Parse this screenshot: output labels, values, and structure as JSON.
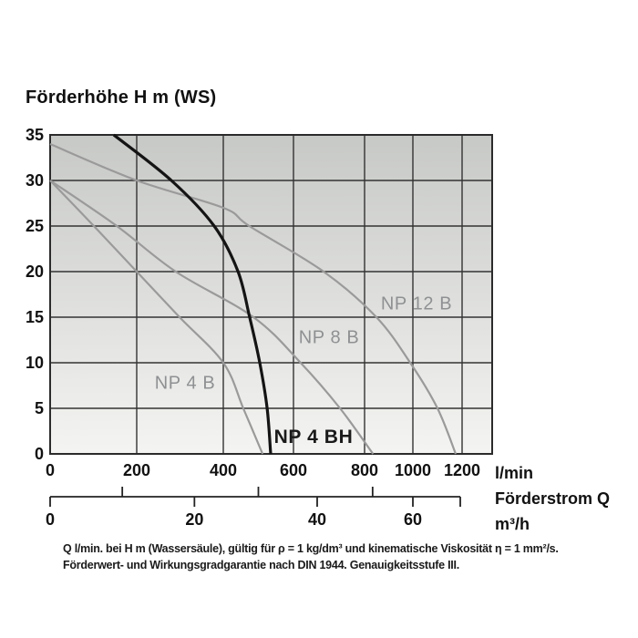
{
  "page": {
    "background": "#ffffff"
  },
  "chart_data": {
    "type": "line",
    "title": "Förderhöhe H m (WS)",
    "y_axis": {
      "label": "Förderhöhe H m (WS)",
      "ticks": [
        35,
        30,
        25,
        20,
        15,
        10,
        5,
        0
      ],
      "range": [
        0,
        35
      ],
      "grid": true
    },
    "x_axis_lmin": {
      "unit": "l/min",
      "ticks": [
        0,
        200,
        400,
        600,
        800,
        1000,
        1200
      ],
      "range": [
        0,
        1270
      ],
      "scale_note": "compressed non-linear spacing toward high flow"
    },
    "x_axis_m3h": {
      "unit": "m³/h",
      "ticks": [
        0,
        20,
        40,
        60
      ],
      "minor_ticks": [
        10,
        30,
        50
      ]
    },
    "x_title": "Förderstrom Q",
    "legend_position": "labels-on-curves",
    "grid_color": "#333333",
    "plot_bg_top": "#c7c9c6",
    "plot_bg_bottom": "#f4f4f2",
    "series": [
      {
        "name": "NP 4 B",
        "color": "#9a9a9a",
        "width": 2.2,
        "points_q_lmin_vs_H_m": [
          [
            0,
            30
          ],
          [
            101,
            25
          ],
          [
            200,
            20
          ],
          [
            299,
            15
          ],
          [
            400,
            10
          ],
          [
            457,
            5
          ],
          [
            512,
            0
          ]
        ]
      },
      {
        "name": "NP 8 B",
        "color": "#9a9a9a",
        "width": 2.2,
        "points_q_lmin_vs_H_m": [
          [
            0,
            30
          ],
          [
            154,
            25
          ],
          [
            290,
            20
          ],
          [
            486,
            15
          ],
          [
            620,
            10
          ],
          [
            731,
            5
          ],
          [
            835,
            0
          ]
        ]
      },
      {
        "name": "NP 12 B",
        "color": "#9a9a9a",
        "width": 2.2,
        "points_q_lmin_vs_H_m": [
          [
            0,
            34
          ],
          [
            200,
            30
          ],
          [
            400,
            27
          ],
          [
            474,
            25
          ],
          [
            685,
            20
          ],
          [
            849,
            15
          ],
          [
            989,
            10
          ],
          [
            1100,
            5
          ],
          [
            1174,
            0
          ]
        ]
      },
      {
        "name": "NP 4 BH",
        "color": "#141414",
        "width": 3.2,
        "points_q_lmin_vs_H_m": [
          [
            147,
            35
          ],
          [
            280,
            30
          ],
          [
            379,
            25
          ],
          [
            442,
            20
          ],
          [
            475,
            15
          ],
          [
            504,
            10
          ],
          [
            525,
            5
          ],
          [
            535,
            0
          ]
        ]
      }
    ]
  },
  "labels": {
    "lmin": "l/min",
    "x_title": "Förderstrom Q",
    "m3h": "m³/h"
  },
  "footnote": {
    "line1": "Q l/min. bei H m (Wassersäule), gültig für ρ = 1 kg/dm³ und kinematische Viskosität η = 1 mm²/s.",
    "line2": "Förderwert- und Wirkungsgradgarantie nach DIN 1944. Genauigkeitsstufe III."
  }
}
